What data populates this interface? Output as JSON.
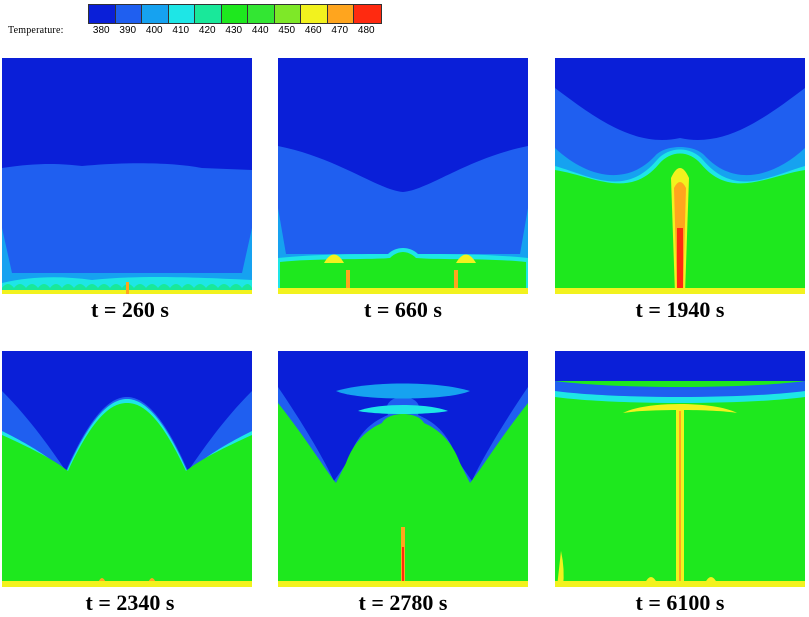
{
  "colorbar": {
    "label": "Temperature:",
    "ticks": [
      "380",
      "390",
      "400",
      "410",
      "420",
      "430",
      "440",
      "450",
      "460",
      "470",
      "480"
    ],
    "colors": [
      "#0a1fd8",
      "#1f5ff0",
      "#16a2f0",
      "#1ee6e6",
      "#19e89a",
      "#1ee81e",
      "#33e633",
      "#7ee828",
      "#f2f21e",
      "#ffa51e",
      "#ff2a10"
    ]
  },
  "panels": [
    {
      "caption": "t = 260 s"
    },
    {
      "caption": "t = 660 s"
    },
    {
      "caption": "t = 1940 s"
    },
    {
      "caption": "t = 2340 s"
    },
    {
      "caption": "t = 2780 s"
    },
    {
      "caption": "t = 6100 s"
    }
  ],
  "palette": {
    "deep_blue": "#0a1fd8",
    "mid_blue": "#1f5ff0",
    "light_blue": "#16a2f0",
    "cyan": "#1ee6e6",
    "green": "#1ee81e",
    "yellow": "#f2f21e",
    "orange": "#ffa51e",
    "red": "#ff2a10"
  }
}
